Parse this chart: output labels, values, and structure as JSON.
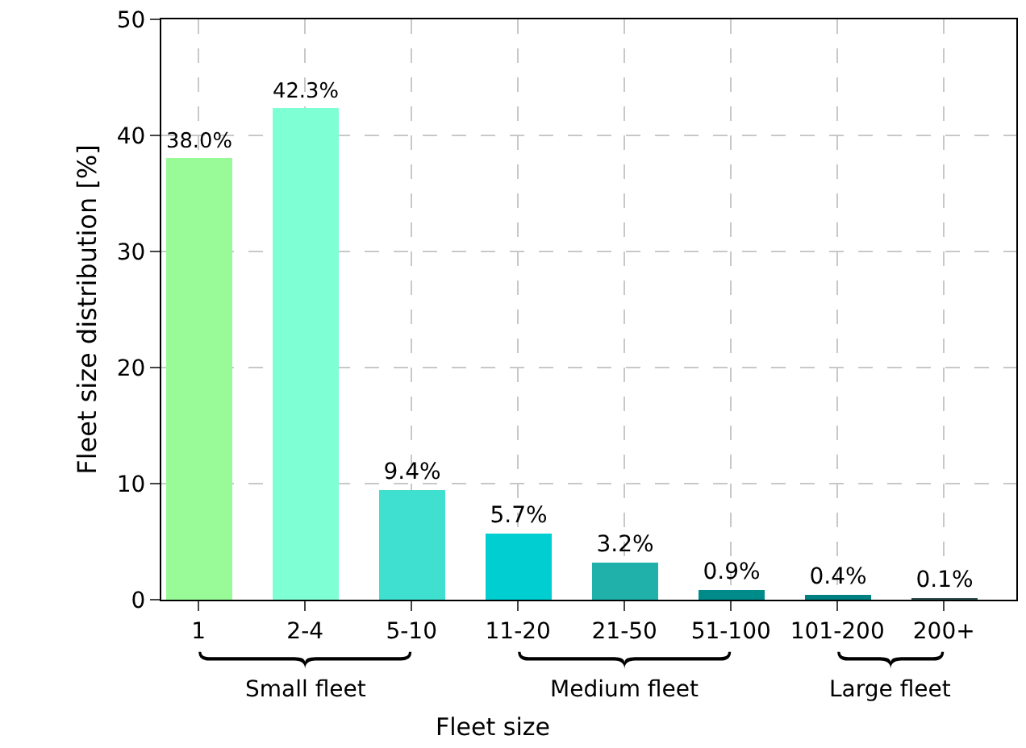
{
  "chart_data": {
    "type": "bar",
    "xlabel": "Fleet size",
    "ylabel": "Fleet size distribution [%]",
    "categories": [
      "1",
      "2-4",
      "5-10",
      "11-20",
      "21-50",
      "51-100",
      "101-200",
      "200+"
    ],
    "values": [
      38.0,
      42.3,
      9.4,
      5.7,
      3.2,
      0.9,
      0.4,
      0.1
    ],
    "value_labels": [
      "38.0%",
      "42.3%",
      "9.4%",
      "5.7%",
      "3.2%",
      "0.9%",
      "0.4%",
      "0.1%"
    ],
    "colors": [
      "#98fb98",
      "#7fffd4",
      "#40e0d0",
      "#00ced1",
      "#20b2aa",
      "#008b8b",
      "#008080",
      "#2f4f4f"
    ],
    "ylim": [
      0,
      50
    ],
    "yticks": [
      0,
      10,
      20,
      30,
      40,
      50
    ],
    "grid": true,
    "annotations": [
      "Small fleet",
      "Medium fleet",
      "Large fleet"
    ]
  }
}
